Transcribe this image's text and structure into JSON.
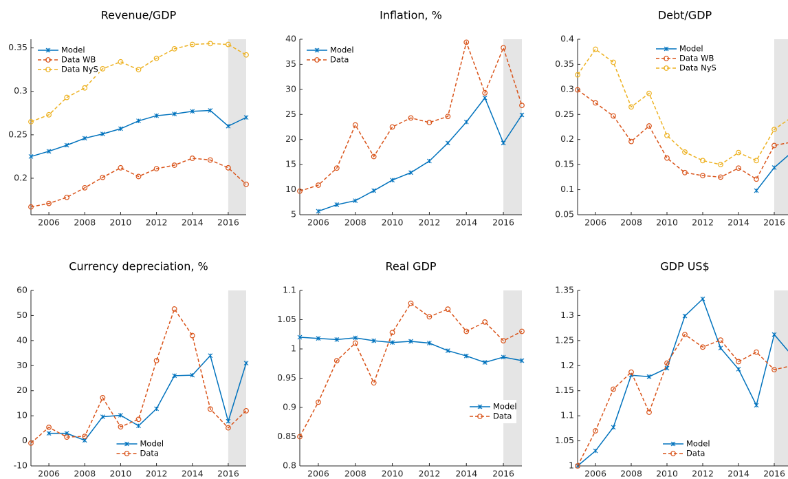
{
  "chart_data": [
    {
      "type": "line",
      "title": "Revenue/GDP",
      "x": [
        2005,
        2006,
        2007,
        2008,
        2009,
        2010,
        2011,
        2012,
        2013,
        2014,
        2015,
        2016,
        2017
      ],
      "xlim": [
        2005,
        2017
      ],
      "xticks": [
        2006,
        2008,
        2010,
        2012,
        2014,
        2016
      ],
      "ylim": [
        0.158,
        0.36
      ],
      "yticks": [
        0.2,
        0.25,
        0.3,
        0.35
      ],
      "shaded_span": [
        2016,
        2017
      ],
      "legend": "northwest",
      "series": [
        {
          "name": "Model",
          "color": "#0072BD",
          "marker": "x",
          "dashed": false,
          "values": [
            0.225,
            0.231,
            0.238,
            0.246,
            0.251,
            0.257,
            0.266,
            0.272,
            0.274,
            0.277,
            0.278,
            0.26,
            0.27
          ]
        },
        {
          "name": "Data WB",
          "color": "#D95319",
          "marker": "o",
          "dashed": true,
          "values": [
            0.167,
            0.171,
            0.178,
            0.189,
            0.201,
            0.212,
            0.202,
            0.211,
            0.215,
            0.223,
            0.221,
            0.212,
            0.193
          ]
        },
        {
          "name": "Data NyS",
          "color": "#EDB120",
          "marker": "o",
          "dashed": true,
          "values": [
            0.265,
            0.273,
            0.293,
            0.304,
            0.326,
            0.334,
            0.325,
            0.338,
            0.349,
            0.354,
            0.355,
            0.354,
            0.342
          ]
        }
      ]
    },
    {
      "type": "line",
      "title": "Inflation, %",
      "x": [
        2005,
        2006,
        2007,
        2008,
        2009,
        2010,
        2011,
        2012,
        2013,
        2014,
        2015,
        2016,
        2017
      ],
      "xlim": [
        2005,
        2017
      ],
      "xticks": [
        2006,
        2008,
        2010,
        2012,
        2014,
        2016
      ],
      "ylim": [
        5,
        40
      ],
      "yticks": [
        5,
        10,
        15,
        20,
        25,
        30,
        35,
        40
      ],
      "shaded_span": [
        2016,
        2017
      ],
      "legend": "northwest",
      "series": [
        {
          "name": "Model",
          "color": "#0072BD",
          "marker": "x",
          "dashed": false,
          "values": [
            null,
            5.7,
            7.0,
            7.8,
            9.8,
            11.9,
            13.4,
            15.7,
            19.3,
            23.5,
            28.3,
            19.3,
            24.9
          ]
        },
        {
          "name": "Data",
          "color": "#D95319",
          "marker": "o",
          "dashed": true,
          "values": [
            9.7,
            10.9,
            14.3,
            22.9,
            16.6,
            22.5,
            24.3,
            23.4,
            24.6,
            39.4,
            29.3,
            38.3,
            26.8
          ]
        }
      ]
    },
    {
      "type": "line",
      "title": "Debt/GDP",
      "x": [
        2005,
        2006,
        2007,
        2008,
        2009,
        2010,
        2011,
        2012,
        2013,
        2014,
        2015,
        2016,
        2017
      ],
      "xlim": [
        2005,
        2017
      ],
      "xticks": [
        2006,
        2008,
        2010,
        2012,
        2014,
        2016
      ],
      "ylim": [
        0.05,
        0.4
      ],
      "yticks": [
        0.05,
        0.1,
        0.15,
        0.2,
        0.25,
        0.3,
        0.35,
        0.4
      ],
      "shaded_span": [
        2016,
        2017
      ],
      "legend": "north",
      "series": [
        {
          "name": "Model",
          "color": "#0072BD",
          "marker": "x",
          "dashed": false,
          "values": [
            null,
            null,
            null,
            null,
            null,
            null,
            null,
            null,
            null,
            null,
            0.098,
            0.144,
            0.175
          ]
        },
        {
          "name": "Data WB",
          "color": "#D95319",
          "marker": "o",
          "dashed": true,
          "values": [
            0.299,
            0.273,
            0.247,
            0.196,
            0.227,
            0.163,
            0.134,
            0.128,
            0.125,
            0.143,
            0.121,
            0.188,
            0.195
          ]
        },
        {
          "name": "Data NyS",
          "color": "#EDB120",
          "marker": "o",
          "dashed": true,
          "values": [
            0.329,
            0.38,
            0.354,
            0.265,
            0.292,
            0.208,
            0.175,
            0.158,
            0.15,
            0.174,
            0.158,
            0.22,
            0.245
          ]
        }
      ]
    },
    {
      "type": "line",
      "title": "Currency depreciation, %",
      "x": [
        2005,
        2006,
        2007,
        2008,
        2009,
        2010,
        2011,
        2012,
        2013,
        2014,
        2015,
        2016,
        2017
      ],
      "xlim": [
        2005,
        2017
      ],
      "xticks": [
        2006,
        2008,
        2010,
        2012,
        2014,
        2016
      ],
      "ylim": [
        -10,
        60
      ],
      "yticks": [
        -10,
        0,
        10,
        20,
        30,
        40,
        50,
        60
      ],
      "shaded_span": [
        2016,
        2017
      ],
      "legend": "south",
      "series": [
        {
          "name": "Model",
          "color": "#0072BD",
          "marker": "x",
          "dashed": false,
          "values": [
            null,
            3.0,
            3.0,
            0.2,
            9.6,
            10.2,
            6.0,
            12.8,
            26.0,
            26.2,
            34.0,
            7.8,
            31.0
          ]
        },
        {
          "name": "Data",
          "color": "#D95319",
          "marker": "o",
          "dashed": true,
          "values": [
            -0.9,
            5.4,
            1.5,
            1.8,
            17.2,
            5.6,
            8.6,
            32.0,
            52.6,
            42.0,
            12.7,
            5.2,
            12.0
          ]
        }
      ]
    },
    {
      "type": "line",
      "title": "Real GDP",
      "x": [
        2005,
        2006,
        2007,
        2008,
        2009,
        2010,
        2011,
        2012,
        2013,
        2014,
        2015,
        2016,
        2017
      ],
      "xlim": [
        2005,
        2017
      ],
      "xticks": [
        2006,
        2008,
        2010,
        2012,
        2014,
        2016
      ],
      "ylim": [
        0.8,
        1.1
      ],
      "yticks": [
        0.8,
        0.85,
        0.9,
        0.95,
        1,
        1.05,
        1.1
      ],
      "shaded_span": [
        2016,
        2017
      ],
      "legend": "southeast",
      "series": [
        {
          "name": "Model",
          "color": "#0072BD",
          "marker": "x",
          "dashed": false,
          "values": [
            1.02,
            1.018,
            1.016,
            1.019,
            1.014,
            1.011,
            1.013,
            1.01,
            0.997,
            0.988,
            0.977,
            0.986,
            0.98
          ]
        },
        {
          "name": "Data",
          "color": "#D95319",
          "marker": "o",
          "dashed": true,
          "values": [
            0.85,
            0.909,
            0.98,
            1.01,
            0.942,
            1.028,
            1.078,
            1.055,
            1.068,
            1.03,
            1.046,
            1.014,
            1.03
          ]
        }
      ]
    },
    {
      "type": "line",
      "title": "GDP US$",
      "x": [
        2005,
        2006,
        2007,
        2008,
        2009,
        2010,
        2011,
        2012,
        2013,
        2014,
        2015,
        2016,
        2017
      ],
      "xlim": [
        2005,
        2017
      ],
      "xticks": [
        2006,
        2008,
        2010,
        2012,
        2014,
        2016
      ],
      "ylim": [
        1,
        1.35
      ],
      "yticks": [
        1,
        1.05,
        1.1,
        1.15,
        1.2,
        1.25,
        1.3,
        1.35
      ],
      "shaded_span": [
        2016,
        2017
      ],
      "legend": "south",
      "series": [
        {
          "name": "Model",
          "color": "#0072BD",
          "marker": "x",
          "dashed": false,
          "values": [
            1.0,
            1.03,
            1.077,
            1.181,
            1.178,
            1.195,
            1.299,
            1.333,
            1.235,
            1.193,
            1.121,
            1.262,
            1.22
          ]
        },
        {
          "name": "Data",
          "color": "#D95319",
          "marker": "o",
          "dashed": true,
          "values": [
            1.0,
            1.07,
            1.153,
            1.187,
            1.107,
            1.205,
            1.262,
            1.237,
            1.251,
            1.208,
            1.227,
            1.192,
            1.2
          ]
        }
      ]
    }
  ]
}
